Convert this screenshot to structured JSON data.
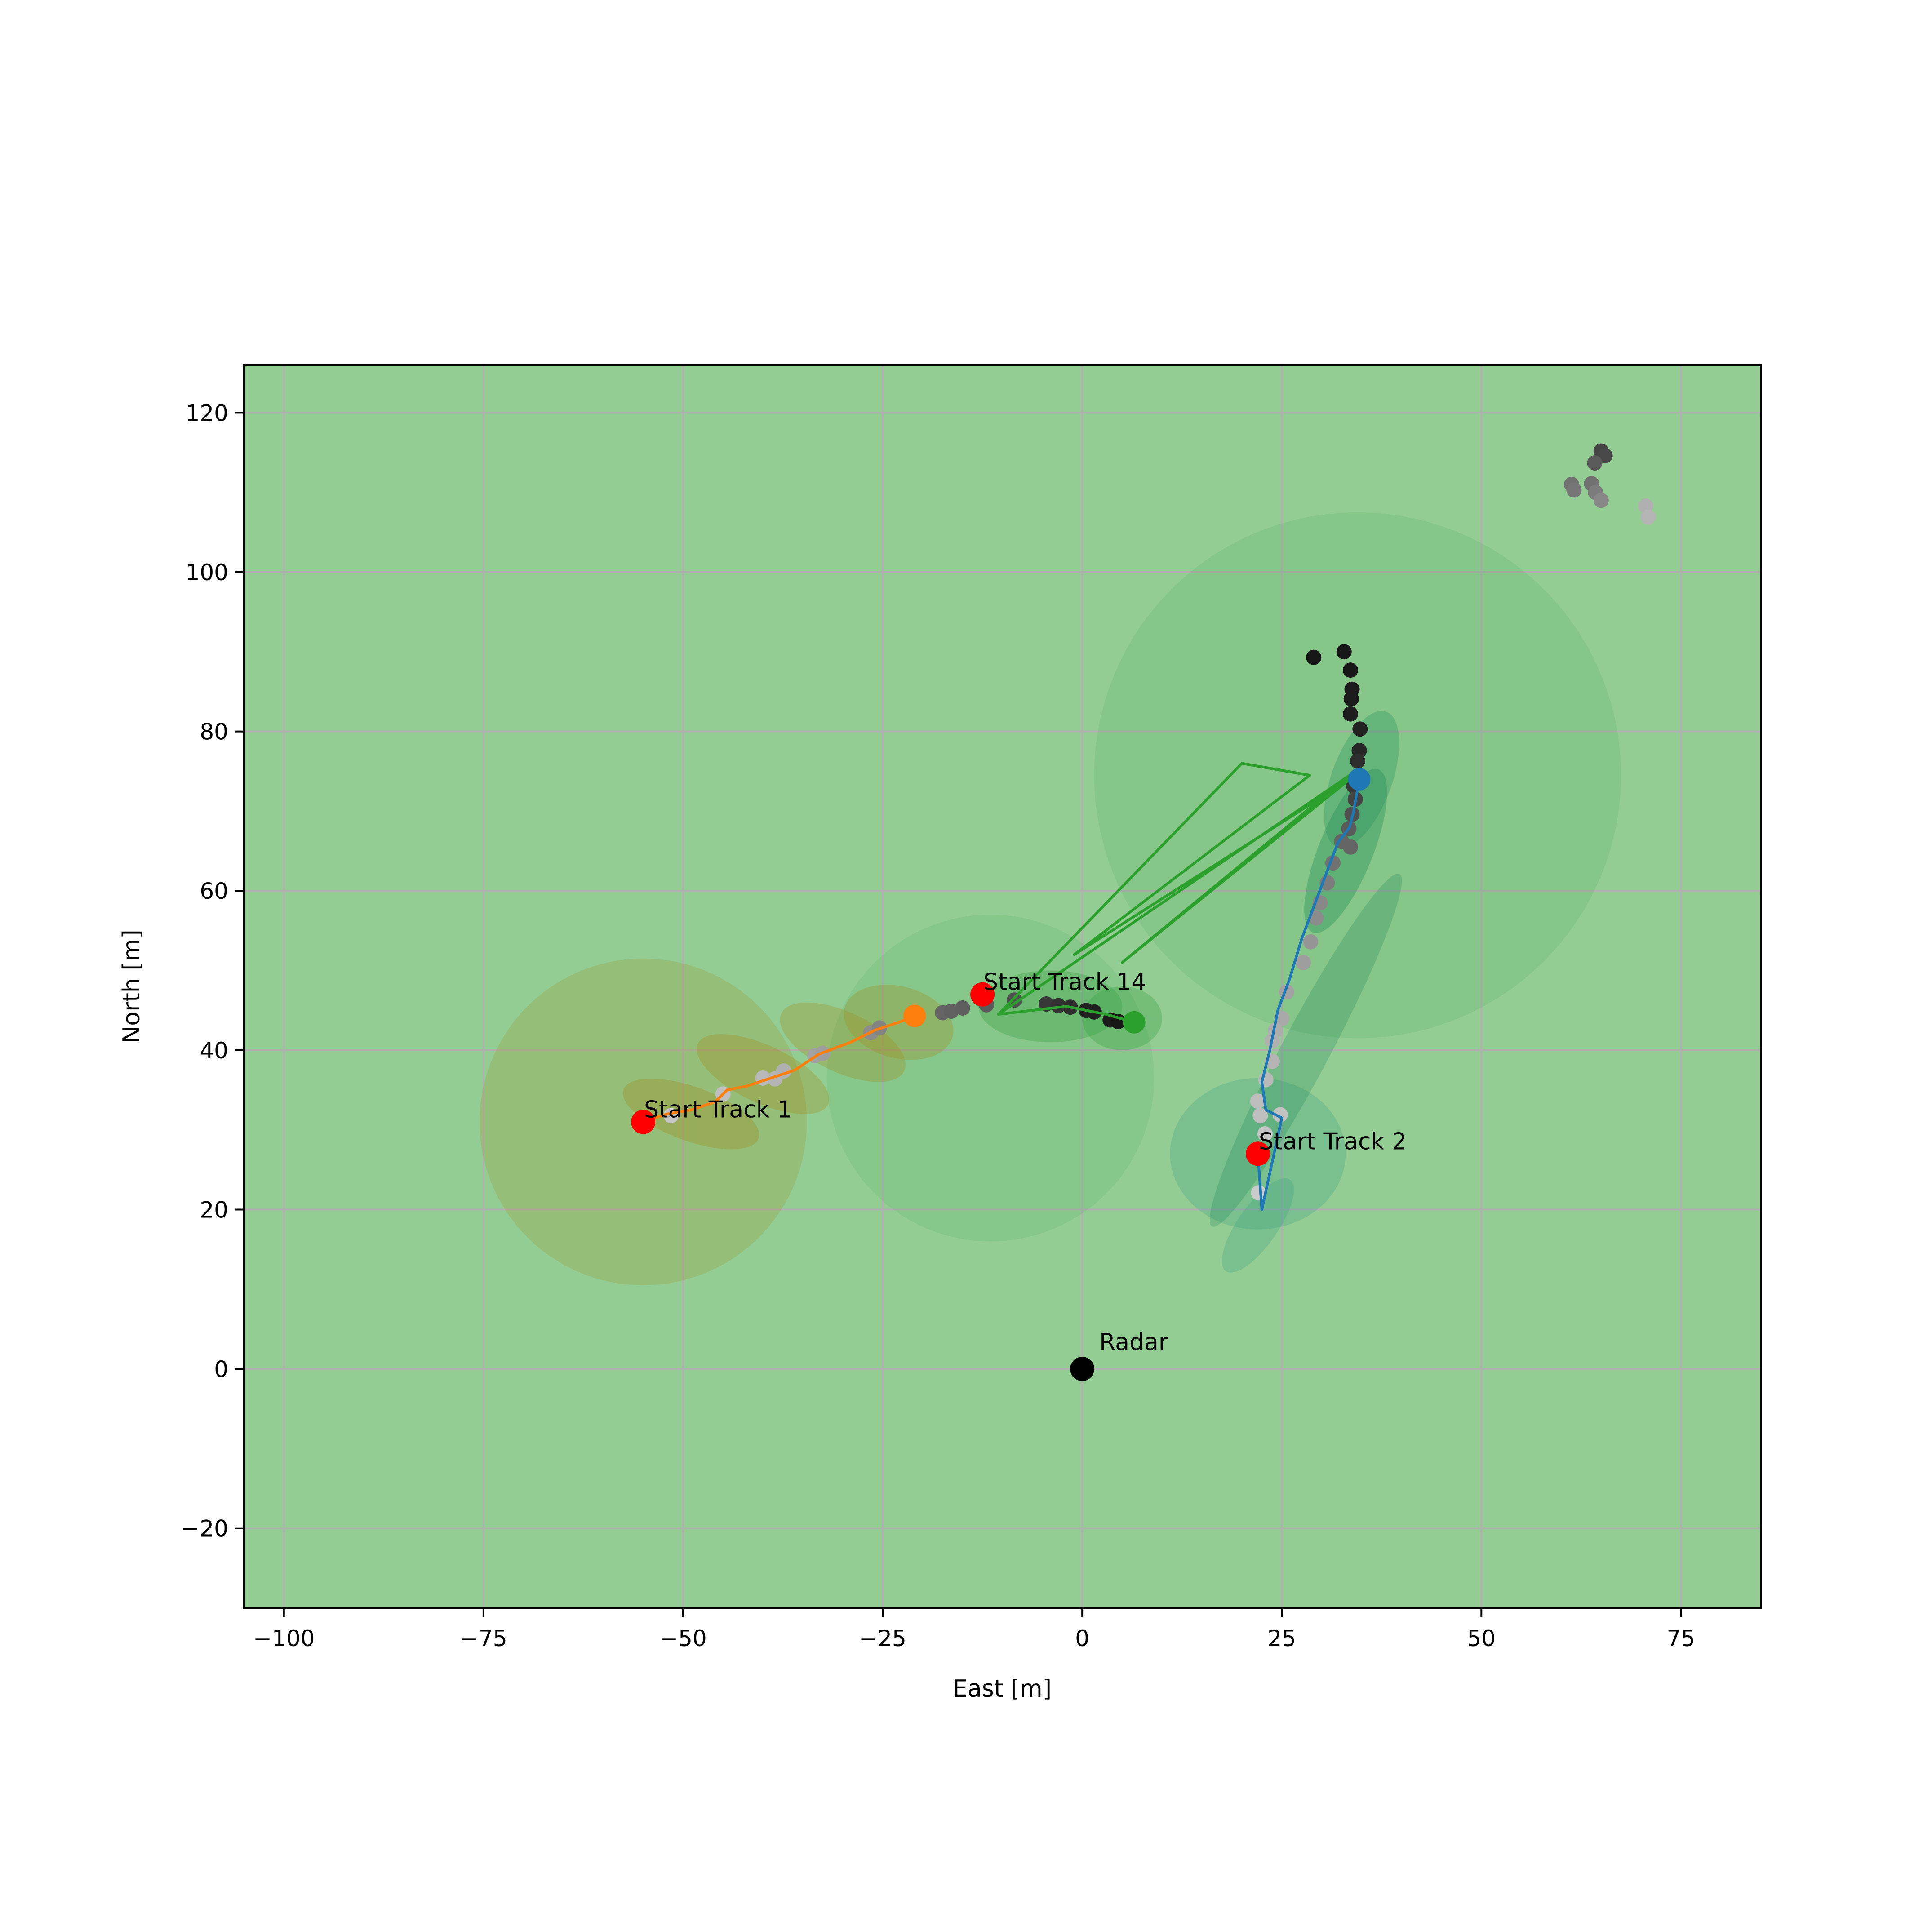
{
  "chart_data": {
    "type": "scatter",
    "title": "",
    "xlabel": "East [m]",
    "ylabel": "North [m]",
    "xlim": [
      -105,
      85
    ],
    "ylim": [
      -30,
      126
    ],
    "xticks": [
      -100,
      -75,
      -50,
      -25,
      0,
      25,
      50,
      75
    ],
    "xtick_labels": [
      "−100",
      "−75",
      "−50",
      "−25",
      "0",
      "25",
      "50",
      "75"
    ],
    "yticks": [
      -20,
      0,
      20,
      40,
      60,
      80,
      100,
      120
    ],
    "ytick_labels": [
      "−20",
      "0",
      "20",
      "40",
      "60",
      "80",
      "100",
      "120"
    ],
    "grid": true,
    "background_color": "#93cd93",
    "grid_color": "#b0b0b0",
    "radar": {
      "x": 0,
      "y": 0,
      "label": "Radar",
      "color": "#000000"
    },
    "uncertainty_regions": [
      {
        "cx": 34.5,
        "cy": 74.5,
        "rx": 33,
        "ry": 33,
        "angle": 0,
        "color": "#2e9a3e",
        "opacity": 0.13
      },
      {
        "cx": -11.5,
        "cy": 36.5,
        "rx": 20.5,
        "ry": 20.5,
        "angle": 0,
        "color": "#2e9a3e",
        "opacity": 0.12
      },
      {
        "cx": -55,
        "cy": 31,
        "rx": 20.5,
        "ry": 20.5,
        "angle": 0,
        "color": "#a08a1c",
        "opacity": 0.22
      },
      {
        "cx": 22,
        "cy": 27,
        "rx": 11,
        "ry": 9.5,
        "angle": 0,
        "color": "#2e9a7e",
        "opacity": 0.25
      },
      {
        "cx": 28,
        "cy": 40,
        "rx": 25,
        "ry": 3,
        "angle": 62,
        "color": "#1f8a5e",
        "opacity": 0.28
      },
      {
        "cx": 33,
        "cy": 65,
        "rx": 11,
        "ry": 3.4,
        "angle": 68,
        "color": "#1a8a55",
        "opacity": 0.35
      },
      {
        "cx": 35,
        "cy": 74,
        "rx": 9,
        "ry": 3.8,
        "angle": 70,
        "color": "#1a8a55",
        "opacity": 0.3
      },
      {
        "cx": 22,
        "cy": 18,
        "rx": 7,
        "ry": 2.5,
        "angle": 55,
        "color": "#2e9a7e",
        "opacity": 0.25
      },
      {
        "cx": -49,
        "cy": 32,
        "rx": 9,
        "ry": 3.4,
        "angle": -20,
        "color": "#a08a1c",
        "opacity": 0.32
      },
      {
        "cx": -40,
        "cy": 37,
        "rx": 9,
        "ry": 3.6,
        "angle": -25,
        "color": "#a08a1c",
        "opacity": 0.3
      },
      {
        "cx": -30,
        "cy": 41,
        "rx": 8.5,
        "ry": 3.8,
        "angle": -25,
        "color": "#a08a1c",
        "opacity": 0.3
      },
      {
        "cx": -23,
        "cy": 43.5,
        "rx": 7,
        "ry": 4.5,
        "angle": -15,
        "color": "#a08a1c",
        "opacity": 0.3
      },
      {
        "cx": -4,
        "cy": 45.5,
        "rx": 9,
        "ry": 4.5,
        "angle": 0,
        "color": "#2e9a3e",
        "opacity": 0.3
      },
      {
        "cx": 5,
        "cy": 44,
        "rx": 5,
        "ry": 4,
        "angle": 0,
        "color": "#2e9a3e",
        "opacity": 0.3
      }
    ],
    "series": [
      {
        "name": "Track 1",
        "color": "#ff7f0e",
        "start": {
          "x": -55,
          "y": 31,
          "label": "Start Track 1"
        },
        "current": {
          "x": -21,
          "y": 44.3
        },
        "x": [
          -55,
          -52,
          -49,
          -46,
          -44.5,
          -42,
          -39,
          -36,
          -33,
          -29,
          -26,
          -23,
          -21
        ],
        "y": [
          31,
          32,
          32.5,
          33.5,
          35,
          35.5,
          36.5,
          37.5,
          39.5,
          41,
          42.5,
          43.5,
          44.3
        ]
      },
      {
        "name": "Track 2",
        "color": "#1f77b4",
        "start": {
          "x": 22,
          "y": 27,
          "label": "Start Track 2"
        },
        "current": {
          "x": 34.7,
          "y": 74
        },
        "x": [
          22,
          22.5,
          25,
          23,
          22.5,
          23.5,
          24.5,
          26,
          27.5,
          29,
          30.5,
          32,
          33.5,
          34,
          34.7
        ],
        "y": [
          27,
          20,
          31.5,
          32.5,
          36,
          40,
          45,
          49,
          54,
          58,
          62,
          66,
          68,
          70,
          74
        ]
      },
      {
        "name": "Track 14",
        "color": "#2ca02c",
        "start": {
          "x": -12.5,
          "y": 47,
          "label": "Start Track 14"
        },
        "current": {
          "x": 6.5,
          "y": 43.5
        },
        "x": [
          -10.5,
          20,
          28.5,
          -1,
          33.5,
          5,
          33.5,
          -10.5,
          -2,
          3,
          6.5
        ],
        "y": [
          44.5,
          76,
          74.5,
          52,
          74,
          51,
          74.5,
          44.5,
          45.5,
          44.5,
          43.5
        ]
      }
    ],
    "detections": [
      {
        "x": 29,
        "y": 89.3,
        "shade": 0.1
      },
      {
        "x": 32.8,
        "y": 90,
        "shade": 0.1
      },
      {
        "x": 33.6,
        "y": 87.7,
        "shade": 0.1
      },
      {
        "x": 33.8,
        "y": 85.3,
        "shade": 0.12
      },
      {
        "x": 33.7,
        "y": 84.1,
        "shade": 0.12
      },
      {
        "x": 33.6,
        "y": 82.2,
        "shade": 0.13
      },
      {
        "x": 34.8,
        "y": 80.3,
        "shade": 0.15
      },
      {
        "x": 34.7,
        "y": 77.6,
        "shade": 0.17
      },
      {
        "x": 34.5,
        "y": 76.3,
        "shade": 0.2
      },
      {
        "x": 34,
        "y": 73.2,
        "shade": 0.25
      },
      {
        "x": 34.2,
        "y": 71.5,
        "shade": 0.3
      },
      {
        "x": 33.8,
        "y": 69.6,
        "shade": 0.35
      },
      {
        "x": 33.4,
        "y": 67.8,
        "shade": 0.4
      },
      {
        "x": 33.6,
        "y": 65.5,
        "shade": 0.45
      },
      {
        "x": 32.5,
        "y": 66.2,
        "shade": 0.45
      },
      {
        "x": 31.4,
        "y": 63.5,
        "shade": 0.5
      },
      {
        "x": 30.7,
        "y": 61,
        "shade": 0.55
      },
      {
        "x": 29.8,
        "y": 58.5,
        "shade": 0.6
      },
      {
        "x": 29.3,
        "y": 56.6,
        "shade": 0.62
      },
      {
        "x": 28.6,
        "y": 53.6,
        "shade": 0.66
      },
      {
        "x": 27.7,
        "y": 51,
        "shade": 0.7
      },
      {
        "x": 25.6,
        "y": 47.3,
        "shade": 0.72
      },
      {
        "x": 25,
        "y": 44,
        "shade": 0.75
      },
      {
        "x": 24.2,
        "y": 42.5,
        "shade": 0.77
      },
      {
        "x": 23.8,
        "y": 41.2,
        "shade": 0.78
      },
      {
        "x": 23.8,
        "y": 38.6,
        "shade": 0.8
      },
      {
        "x": 23,
        "y": 36.3,
        "shade": 0.82
      },
      {
        "x": 22,
        "y": 33.6,
        "shade": 0.84
      },
      {
        "x": 22.3,
        "y": 31.8,
        "shade": 0.85
      },
      {
        "x": 24.8,
        "y": 31.9,
        "shade": 0.86
      },
      {
        "x": 22.9,
        "y": 29.5,
        "shade": 0.88
      },
      {
        "x": 22.1,
        "y": 22.1,
        "shade": 0.9
      },
      {
        "x": -51.5,
        "y": 31.8,
        "shade": 0.88
      },
      {
        "x": -45,
        "y": 34.5,
        "shade": 0.85
      },
      {
        "x": -40,
        "y": 36.5,
        "shade": 0.82
      },
      {
        "x": -38.5,
        "y": 36.4,
        "shade": 0.8
      },
      {
        "x": -37.4,
        "y": 37.4,
        "shade": 0.78
      },
      {
        "x": -33.5,
        "y": 39.3,
        "shade": 0.72
      },
      {
        "x": -32.5,
        "y": 39.6,
        "shade": 0.7
      },
      {
        "x": -26.5,
        "y": 42.2,
        "shade": 0.62
      },
      {
        "x": -25.4,
        "y": 42.8,
        "shade": 0.58
      },
      {
        "x": -17.5,
        "y": 44.7,
        "shade": 0.45
      },
      {
        "x": -16.4,
        "y": 44.9,
        "shade": 0.43
      },
      {
        "x": -15,
        "y": 45.3,
        "shade": 0.42
      },
      {
        "x": -12,
        "y": 45.7,
        "shade": 0.4
      },
      {
        "x": -8.5,
        "y": 46.3,
        "shade": 0.35
      },
      {
        "x": -4.5,
        "y": 45.8,
        "shade": 0.25
      },
      {
        "x": -3,
        "y": 45.6,
        "shade": 0.22
      },
      {
        "x": -1.5,
        "y": 45.4,
        "shade": 0.2
      },
      {
        "x": 0.5,
        "y": 45,
        "shade": 0.15
      },
      {
        "x": 1.5,
        "y": 44.8,
        "shade": 0.14
      },
      {
        "x": 3.5,
        "y": 43.8,
        "shade": 0.12
      },
      {
        "x": 4.5,
        "y": 43.6,
        "shade": 0.1
      },
      {
        "x": 65,
        "y": 115.2,
        "shade": 0.3
      },
      {
        "x": 65.5,
        "y": 114.6,
        "shade": 0.32
      },
      {
        "x": 64.2,
        "y": 113.7,
        "shade": 0.4
      },
      {
        "x": 61.3,
        "y": 111,
        "shade": 0.5
      },
      {
        "x": 61.6,
        "y": 110.3,
        "shade": 0.52
      },
      {
        "x": 63.8,
        "y": 111.1,
        "shade": 0.5
      },
      {
        "x": 64.3,
        "y": 110,
        "shade": 0.55
      },
      {
        "x": 65,
        "y": 109,
        "shade": 0.6
      },
      {
        "x": 70.6,
        "y": 108.3,
        "shade": 0.78
      },
      {
        "x": 70.9,
        "y": 106.9,
        "shade": 0.8
      }
    ]
  }
}
